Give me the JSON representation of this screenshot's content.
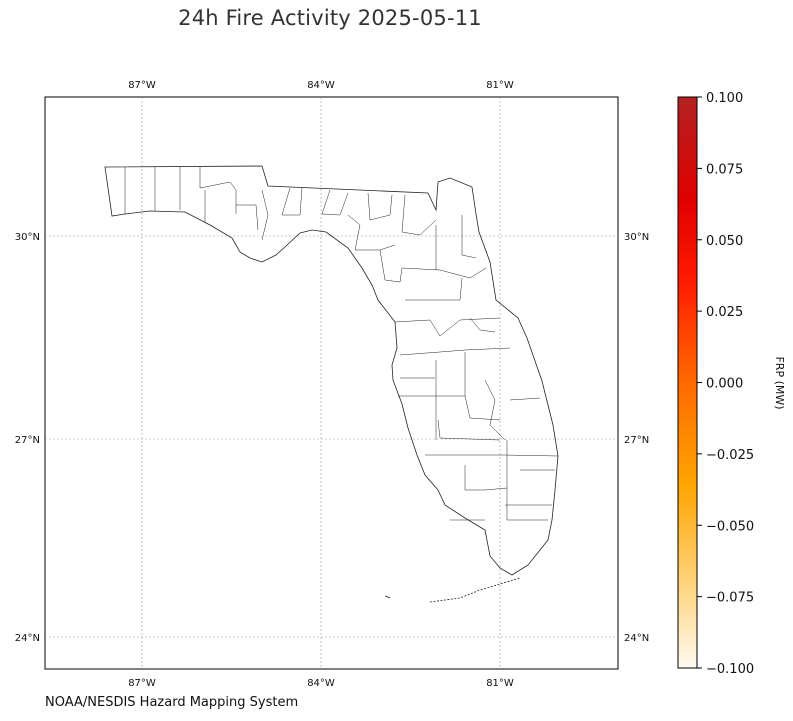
{
  "title": "24h Fire Activity 2025-05-11",
  "map": {
    "lon_ticks": [
      "87°W",
      "84°W",
      "81°W"
    ],
    "lat_ticks": [
      "30°N",
      "27°N",
      "24°N"
    ],
    "gridlines": true,
    "fire_detections": []
  },
  "colorbar": {
    "label": "FRP (MW)",
    "ticks": [
      "0.100",
      "0.075",
      "0.050",
      "0.025",
      "0.000",
      "−0.025",
      "−0.050",
      "−0.075",
      "−0.100"
    ],
    "range": [
      -0.1,
      0.1
    ],
    "colors": [
      "#fffaf0",
      "#ffd37a",
      "#ffa500",
      "#ff6a00",
      "#ff1a00",
      "#e00000",
      "#b22222"
    ]
  },
  "source": "NOAA/NESDIS Hazard Mapping System"
}
